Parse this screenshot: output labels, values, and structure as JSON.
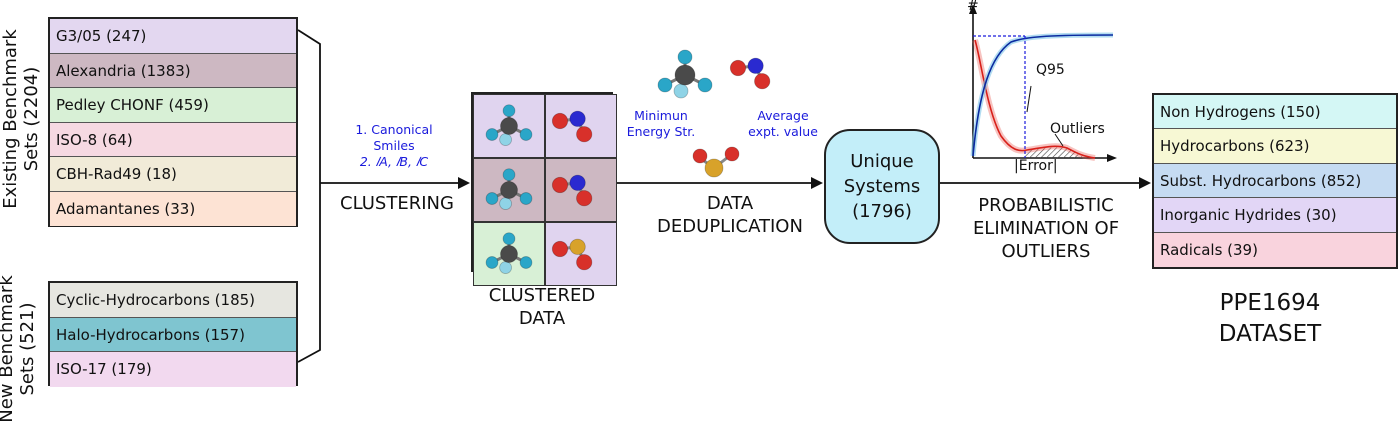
{
  "existing": {
    "label": "Existing Benchmark Sets (2204)",
    "items": [
      {
        "text": "G3/05 (247)",
        "color": "#e3d7f0"
      },
      {
        "text": "Alexandria (1383)",
        "color": "#cdb8c2"
      },
      {
        "text": "Pedley CHONF (459)",
        "color": "#d8f0d6"
      },
      {
        "text": "ISO-8 (64)",
        "color": "#f6d9e2"
      },
      {
        "text": "CBH-Rad49 (18)",
        "color": "#f1ebd8"
      },
      {
        "text": "Adamantanes (33)",
        "color": "#fde3d4"
      }
    ]
  },
  "new_sets": {
    "label": "New Benchmark Sets (521)",
    "items": [
      {
        "text": "Cyclic-Hydrocarbons (185)",
        "color": "#e6e6e0"
      },
      {
        "text": "Halo-Hydrocarbons (157)",
        "color": "#7fc5d0"
      },
      {
        "text": "ISO-17 (179)",
        "color": "#f2d9ef"
      }
    ]
  },
  "clustering": {
    "label": "CLUSTERING",
    "criteria_1": "1. Canonical",
    "criteria_1b": "Smiles",
    "criteria_2": "2. 𝐼A, 𝐼B, 𝐼C"
  },
  "clustered": {
    "label_line1": "CLUSTERED",
    "label_line2": "DATA",
    "cell_colors": [
      "#e0d4ef",
      "#e0d4ef",
      "#cdb8c2",
      "#cdb8c2",
      "#d8f0d6",
      "#e0d4ef"
    ]
  },
  "dedup": {
    "label_line1": "DATA",
    "label_line2": "DEDUPLICATION",
    "min_energy_line1": "Minimun",
    "min_energy_line2": "Energy Str.",
    "avg_line1": "Average",
    "avg_line2": "expt. value"
  },
  "unique": {
    "line1": "Unique",
    "line2": "Systems",
    "line3": "(1796)"
  },
  "elimination": {
    "line1": "PROBABILISTIC",
    "line2": "ELIMINATION OF",
    "line3": "OUTLIERS"
  },
  "plot": {
    "ylabel": "#",
    "xlabel": "|Error|",
    "q95": "Q95",
    "outliers": "Outliers"
  },
  "output": {
    "items": [
      {
        "text": "Non Hydrogens (150)",
        "color": "#d4f7f5"
      },
      {
        "text": "Hydrocarbons (623)",
        "color": "#f7f8d4"
      },
      {
        "text": "Subst. Hydrocarbons (852)",
        "color": "#c5dbf2"
      },
      {
        "text": "Inorganic Hydrides (30)",
        "color": "#e2d6f6"
      },
      {
        "text": "Radicals (39)",
        "color": "#f9d3dd"
      }
    ],
    "title_line1": "PPE1694",
    "title_line2": "DATASET"
  },
  "atom_colors": {
    "carbon": "#4a4a4a",
    "hydrogen": "#2aa6c8",
    "oxygen": "#d8302a",
    "nitrogen": "#2a2ad0",
    "sulfur": "#d8a22a"
  }
}
